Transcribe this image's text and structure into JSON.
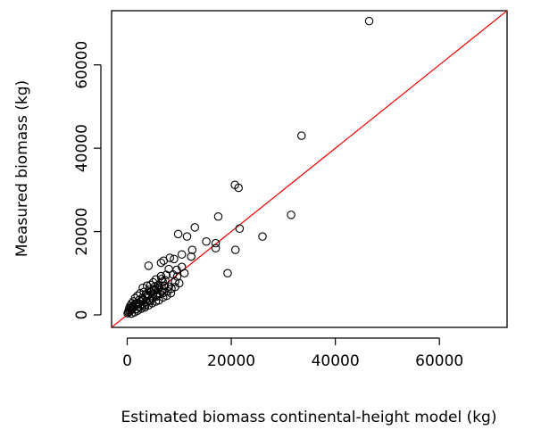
{
  "chart_data": {
    "type": "scatter",
    "title": "",
    "xlabel": "Estimated biomass continental-height model (kg)",
    "ylabel": "Measured biomass (kg)",
    "xlim": [
      -3000,
      73000
    ],
    "ylim": [
      -3000,
      73000
    ],
    "xticks": [
      0,
      20000,
      40000,
      60000
    ],
    "yticks": [
      0,
      20000,
      40000,
      60000
    ],
    "xtick_labels": [
      "0",
      "20000",
      "40000",
      "60000"
    ],
    "ytick_labels": [
      "0",
      "20000",
      "40000",
      "60000"
    ],
    "grid": false,
    "legend": "none",
    "marker": "open-circle",
    "reference_line": {
      "type": "identity",
      "x": [
        -3000,
        73000
      ],
      "y": [
        -3000,
        73000
      ],
      "color": "#ff0000"
    },
    "colors": {
      "points": "#000000",
      "reference_line": "#ff0000"
    },
    "series": [
      {
        "points": [
          [
            46500,
            70500
          ],
          [
            33500,
            43000
          ],
          [
            20700,
            31200
          ],
          [
            21400,
            30500
          ],
          [
            31500,
            24000
          ],
          [
            26000,
            18800
          ],
          [
            21600,
            20700
          ],
          [
            17500,
            23600
          ],
          [
            20800,
            15600
          ],
          [
            19300,
            10000
          ],
          [
            13000,
            21000
          ],
          [
            15200,
            17600
          ],
          [
            17000,
            17200
          ],
          [
            17000,
            16000
          ],
          [
            11500,
            18800
          ],
          [
            12500,
            15600
          ],
          [
            12300,
            14000
          ],
          [
            9800,
            19400
          ],
          [
            10500,
            14500
          ],
          [
            9000,
            13400
          ],
          [
            8200,
            13700
          ],
          [
            7000,
            13000
          ],
          [
            6500,
            12500
          ],
          [
            4100,
            11800
          ],
          [
            10500,
            11500
          ],
          [
            9500,
            10800
          ],
          [
            11000,
            10000
          ],
          [
            8000,
            11000
          ],
          [
            7500,
            9600
          ],
          [
            6500,
            9300
          ],
          [
            5500,
            8500
          ],
          [
            6800,
            8000
          ],
          [
            5000,
            7800
          ],
          [
            4500,
            7200
          ],
          [
            3800,
            7000
          ],
          [
            3000,
            6500
          ],
          [
            7200,
            7000
          ],
          [
            8000,
            6800
          ],
          [
            9200,
            8000
          ],
          [
            6000,
            7200
          ],
          [
            5200,
            6200
          ],
          [
            4200,
            6000
          ],
          [
            3200,
            5500
          ],
          [
            2500,
            5200
          ],
          [
            2000,
            4600
          ],
          [
            1500,
            4000
          ],
          [
            1200,
            3200
          ],
          [
            900,
            2800
          ],
          [
            600,
            2200
          ],
          [
            400,
            1600
          ],
          [
            300,
            1100
          ],
          [
            200,
            700
          ],
          [
            100,
            400
          ],
          [
            500,
            800
          ],
          [
            800,
            1200
          ],
          [
            1000,
            1500
          ],
          [
            1300,
            1800
          ],
          [
            1700,
            2300
          ],
          [
            2200,
            2800
          ],
          [
            2600,
            3300
          ],
          [
            3000,
            3700
          ],
          [
            3500,
            4300
          ],
          [
            4000,
            4800
          ],
          [
            4600,
            5400
          ],
          [
            5100,
            5800
          ],
          [
            5700,
            6300
          ],
          [
            6200,
            6600
          ],
          [
            1800,
            1400
          ],
          [
            2400,
            2000
          ],
          [
            3100,
            2600
          ],
          [
            3700,
            3100
          ],
          [
            4300,
            3500
          ],
          [
            4900,
            4000
          ],
          [
            5600,
            4400
          ],
          [
            6300,
            5000
          ],
          [
            7000,
            5300
          ],
          [
            7800,
            5700
          ],
          [
            8500,
            6300
          ],
          [
            9200,
            6700
          ],
          [
            10000,
            7600
          ],
          [
            3400,
            1800
          ],
          [
            4100,
            2300
          ],
          [
            4800,
            2800
          ],
          [
            5500,
            3200
          ],
          [
            6100,
            3500
          ],
          [
            6900,
            4200
          ],
          [
            7600,
            4600
          ],
          [
            8400,
            5200
          ],
          [
            2000,
            1000
          ],
          [
            2700,
            1500
          ],
          [
            1400,
            600
          ],
          [
            800,
            300
          ],
          [
            2900,
            4100
          ],
          [
            3600,
            5000
          ],
          [
            4400,
            5600
          ],
          [
            5300,
            6800
          ],
          [
            6600,
            8600
          ],
          [
            7300,
            8300
          ],
          [
            8800,
            9700
          ],
          [
            9600,
            9200
          ],
          [
            3300,
            2200
          ],
          [
            4500,
            3300
          ],
          [
            5800,
            4700
          ],
          [
            6700,
            5600
          ],
          [
            2300,
            3600
          ],
          [
            1600,
            2700
          ],
          [
            1100,
            2100
          ],
          [
            700,
            1700
          ],
          [
            3900,
            4500
          ],
          [
            5000,
            5100
          ],
          [
            6000,
            6000
          ],
          [
            7000,
            7000
          ]
        ]
      }
    ]
  }
}
